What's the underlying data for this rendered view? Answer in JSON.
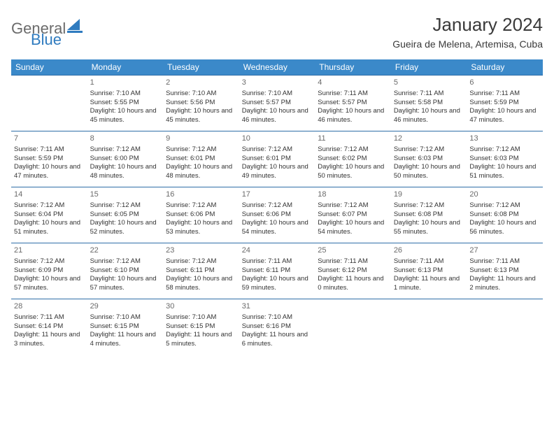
{
  "logo": {
    "word1": "General",
    "word2": "Blue",
    "word1_color": "#6b6b6b",
    "word2_color": "#2f7bbf"
  },
  "title": "January 2024",
  "location": "Gueira de Melena, Artemisa, Cuba",
  "colors": {
    "header_bg": "#3b89c9",
    "header_text": "#ffffff",
    "row_border": "#2f6ea8",
    "daynum": "#6b6b6b",
    "body_text": "#333333",
    "page_bg": "#ffffff"
  },
  "day_headers": [
    "Sunday",
    "Monday",
    "Tuesday",
    "Wednesday",
    "Thursday",
    "Friday",
    "Saturday"
  ],
  "weeks": [
    [
      null,
      {
        "n": "1",
        "sr": "7:10 AM",
        "ss": "5:55 PM",
        "dl": "10 hours and 45 minutes."
      },
      {
        "n": "2",
        "sr": "7:10 AM",
        "ss": "5:56 PM",
        "dl": "10 hours and 45 minutes."
      },
      {
        "n": "3",
        "sr": "7:10 AM",
        "ss": "5:57 PM",
        "dl": "10 hours and 46 minutes."
      },
      {
        "n": "4",
        "sr": "7:11 AM",
        "ss": "5:57 PM",
        "dl": "10 hours and 46 minutes."
      },
      {
        "n": "5",
        "sr": "7:11 AM",
        "ss": "5:58 PM",
        "dl": "10 hours and 46 minutes."
      },
      {
        "n": "6",
        "sr": "7:11 AM",
        "ss": "5:59 PM",
        "dl": "10 hours and 47 minutes."
      }
    ],
    [
      {
        "n": "7",
        "sr": "7:11 AM",
        "ss": "5:59 PM",
        "dl": "10 hours and 47 minutes."
      },
      {
        "n": "8",
        "sr": "7:12 AM",
        "ss": "6:00 PM",
        "dl": "10 hours and 48 minutes."
      },
      {
        "n": "9",
        "sr": "7:12 AM",
        "ss": "6:01 PM",
        "dl": "10 hours and 48 minutes."
      },
      {
        "n": "10",
        "sr": "7:12 AM",
        "ss": "6:01 PM",
        "dl": "10 hours and 49 minutes."
      },
      {
        "n": "11",
        "sr": "7:12 AM",
        "ss": "6:02 PM",
        "dl": "10 hours and 50 minutes."
      },
      {
        "n": "12",
        "sr": "7:12 AM",
        "ss": "6:03 PM",
        "dl": "10 hours and 50 minutes."
      },
      {
        "n": "13",
        "sr": "7:12 AM",
        "ss": "6:03 PM",
        "dl": "10 hours and 51 minutes."
      }
    ],
    [
      {
        "n": "14",
        "sr": "7:12 AM",
        "ss": "6:04 PM",
        "dl": "10 hours and 51 minutes."
      },
      {
        "n": "15",
        "sr": "7:12 AM",
        "ss": "6:05 PM",
        "dl": "10 hours and 52 minutes."
      },
      {
        "n": "16",
        "sr": "7:12 AM",
        "ss": "6:06 PM",
        "dl": "10 hours and 53 minutes."
      },
      {
        "n": "17",
        "sr": "7:12 AM",
        "ss": "6:06 PM",
        "dl": "10 hours and 54 minutes."
      },
      {
        "n": "18",
        "sr": "7:12 AM",
        "ss": "6:07 PM",
        "dl": "10 hours and 54 minutes."
      },
      {
        "n": "19",
        "sr": "7:12 AM",
        "ss": "6:08 PM",
        "dl": "10 hours and 55 minutes."
      },
      {
        "n": "20",
        "sr": "7:12 AM",
        "ss": "6:08 PM",
        "dl": "10 hours and 56 minutes."
      }
    ],
    [
      {
        "n": "21",
        "sr": "7:12 AM",
        "ss": "6:09 PM",
        "dl": "10 hours and 57 minutes."
      },
      {
        "n": "22",
        "sr": "7:12 AM",
        "ss": "6:10 PM",
        "dl": "10 hours and 57 minutes."
      },
      {
        "n": "23",
        "sr": "7:12 AM",
        "ss": "6:11 PM",
        "dl": "10 hours and 58 minutes."
      },
      {
        "n": "24",
        "sr": "7:11 AM",
        "ss": "6:11 PM",
        "dl": "10 hours and 59 minutes."
      },
      {
        "n": "25",
        "sr": "7:11 AM",
        "ss": "6:12 PM",
        "dl": "11 hours and 0 minutes."
      },
      {
        "n": "26",
        "sr": "7:11 AM",
        "ss": "6:13 PM",
        "dl": "11 hours and 1 minute."
      },
      {
        "n": "27",
        "sr": "7:11 AM",
        "ss": "6:13 PM",
        "dl": "11 hours and 2 minutes."
      }
    ],
    [
      {
        "n": "28",
        "sr": "7:11 AM",
        "ss": "6:14 PM",
        "dl": "11 hours and 3 minutes."
      },
      {
        "n": "29",
        "sr": "7:10 AM",
        "ss": "6:15 PM",
        "dl": "11 hours and 4 minutes."
      },
      {
        "n": "30",
        "sr": "7:10 AM",
        "ss": "6:15 PM",
        "dl": "11 hours and 5 minutes."
      },
      {
        "n": "31",
        "sr": "7:10 AM",
        "ss": "6:16 PM",
        "dl": "11 hours and 6 minutes."
      },
      null,
      null,
      null
    ]
  ],
  "labels": {
    "sunrise": "Sunrise:",
    "sunset": "Sunset:",
    "daylight": "Daylight:"
  }
}
